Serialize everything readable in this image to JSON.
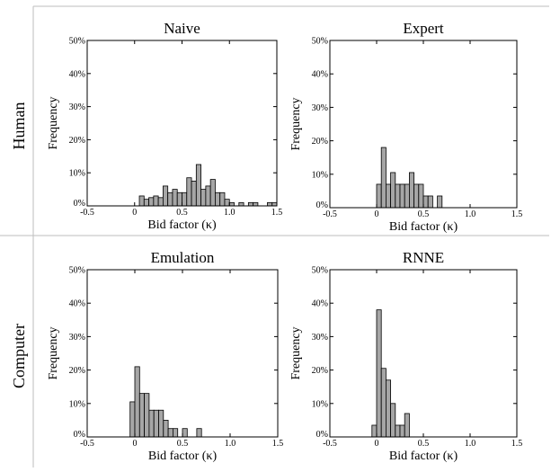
{
  "row_labels": [
    "Human",
    "Computer"
  ],
  "chart_data": [
    {
      "type": "bar",
      "title": "Naive",
      "xlabel": "Bid factor (κ)",
      "ylabel": "Frequency",
      "xlim": [
        -0.5,
        1.5
      ],
      "ylim": [
        0,
        50
      ],
      "xticks": [
        "-0.5",
        "0",
        "0.5",
        "1.0",
        "1.5"
      ],
      "yticks": [
        "0%",
        "10%",
        "20%",
        "30%",
        "40%",
        "50%"
      ],
      "bin_width": 0.05,
      "bins": [
        {
          "x": 0.05,
          "y": 3
        },
        {
          "x": 0.1,
          "y": 2
        },
        {
          "x": 0.15,
          "y": 2.5
        },
        {
          "x": 0.2,
          "y": 3
        },
        {
          "x": 0.25,
          "y": 2.5
        },
        {
          "x": 0.3,
          "y": 6
        },
        {
          "x": 0.35,
          "y": 4
        },
        {
          "x": 0.4,
          "y": 5
        },
        {
          "x": 0.45,
          "y": 4
        },
        {
          "x": 0.5,
          "y": 4
        },
        {
          "x": 0.55,
          "y": 8.5
        },
        {
          "x": 0.6,
          "y": 7.5
        },
        {
          "x": 0.65,
          "y": 12.5
        },
        {
          "x": 0.7,
          "y": 5
        },
        {
          "x": 0.75,
          "y": 6
        },
        {
          "x": 0.8,
          "y": 8
        },
        {
          "x": 0.85,
          "y": 4
        },
        {
          "x": 0.9,
          "y": 4
        },
        {
          "x": 0.95,
          "y": 2
        },
        {
          "x": 1.0,
          "y": 1
        },
        {
          "x": 1.1,
          "y": 1
        },
        {
          "x": 1.2,
          "y": 1
        },
        {
          "x": 1.25,
          "y": 1
        },
        {
          "x": 1.4,
          "y": 1
        },
        {
          "x": 1.45,
          "y": 1
        }
      ]
    },
    {
      "type": "bar",
      "title": "Expert",
      "xlabel": "Bid factor (κ)",
      "ylabel": "Frequency",
      "xlim": [
        -0.5,
        1.5
      ],
      "ylim": [
        0,
        50
      ],
      "xticks": [
        "-0.5",
        "0",
        "0.5",
        "1.0",
        "1.5"
      ],
      "yticks": [
        "0%",
        "10%",
        "20%",
        "30%",
        "40%",
        "50%"
      ],
      "bin_width": 0.05,
      "bins": [
        {
          "x": 0.0,
          "y": 7
        },
        {
          "x": 0.05,
          "y": 18
        },
        {
          "x": 0.1,
          "y": 7
        },
        {
          "x": 0.15,
          "y": 10.5
        },
        {
          "x": 0.2,
          "y": 7
        },
        {
          "x": 0.25,
          "y": 7
        },
        {
          "x": 0.3,
          "y": 7
        },
        {
          "x": 0.35,
          "y": 10.5
        },
        {
          "x": 0.4,
          "y": 7
        },
        {
          "x": 0.45,
          "y": 7
        },
        {
          "x": 0.5,
          "y": 3.5
        },
        {
          "x": 0.55,
          "y": 3.5
        },
        {
          "x": 0.65,
          "y": 3.5
        }
      ]
    },
    {
      "type": "bar",
      "title": "Emulation",
      "xlabel": "Bid factor (κ)",
      "ylabel": "Frequency",
      "xlim": [
        -0.5,
        1.5
      ],
      "ylim": [
        0,
        50
      ],
      "xticks": [
        "-0.5",
        "0",
        "0.5",
        "1.0",
        "1.5"
      ],
      "yticks": [
        "0%",
        "10%",
        "20%",
        "30%",
        "40%",
        "50%"
      ],
      "bin_width": 0.05,
      "bins": [
        {
          "x": -0.05,
          "y": 10.5
        },
        {
          "x": 0.0,
          "y": 21
        },
        {
          "x": 0.05,
          "y": 13
        },
        {
          "x": 0.1,
          "y": 13
        },
        {
          "x": 0.15,
          "y": 8
        },
        {
          "x": 0.2,
          "y": 8
        },
        {
          "x": 0.25,
          "y": 8
        },
        {
          "x": 0.3,
          "y": 5
        },
        {
          "x": 0.35,
          "y": 2.5
        },
        {
          "x": 0.4,
          "y": 2.5
        },
        {
          "x": 0.5,
          "y": 2.5
        },
        {
          "x": 0.65,
          "y": 2.5
        }
      ]
    },
    {
      "type": "bar",
      "title": "RNNE",
      "xlabel": "Bid factor (κ)",
      "ylabel": "Frequency",
      "xlim": [
        -0.5,
        1.5
      ],
      "ylim": [
        0,
        50
      ],
      "xticks": [
        "-0.5",
        "0",
        "0.5",
        "1.0",
        "1.5"
      ],
      "yticks": [
        "0%",
        "10%",
        "20%",
        "30%",
        "40%",
        "50%"
      ],
      "bin_width": 0.05,
      "bins": [
        {
          "x": -0.05,
          "y": 3.5
        },
        {
          "x": 0.0,
          "y": 38
        },
        {
          "x": 0.05,
          "y": 20.5
        },
        {
          "x": 0.1,
          "y": 17
        },
        {
          "x": 0.15,
          "y": 10
        },
        {
          "x": 0.2,
          "y": 3.5
        },
        {
          "x": 0.25,
          "y": 3.5
        },
        {
          "x": 0.3,
          "y": 7
        }
      ]
    }
  ]
}
